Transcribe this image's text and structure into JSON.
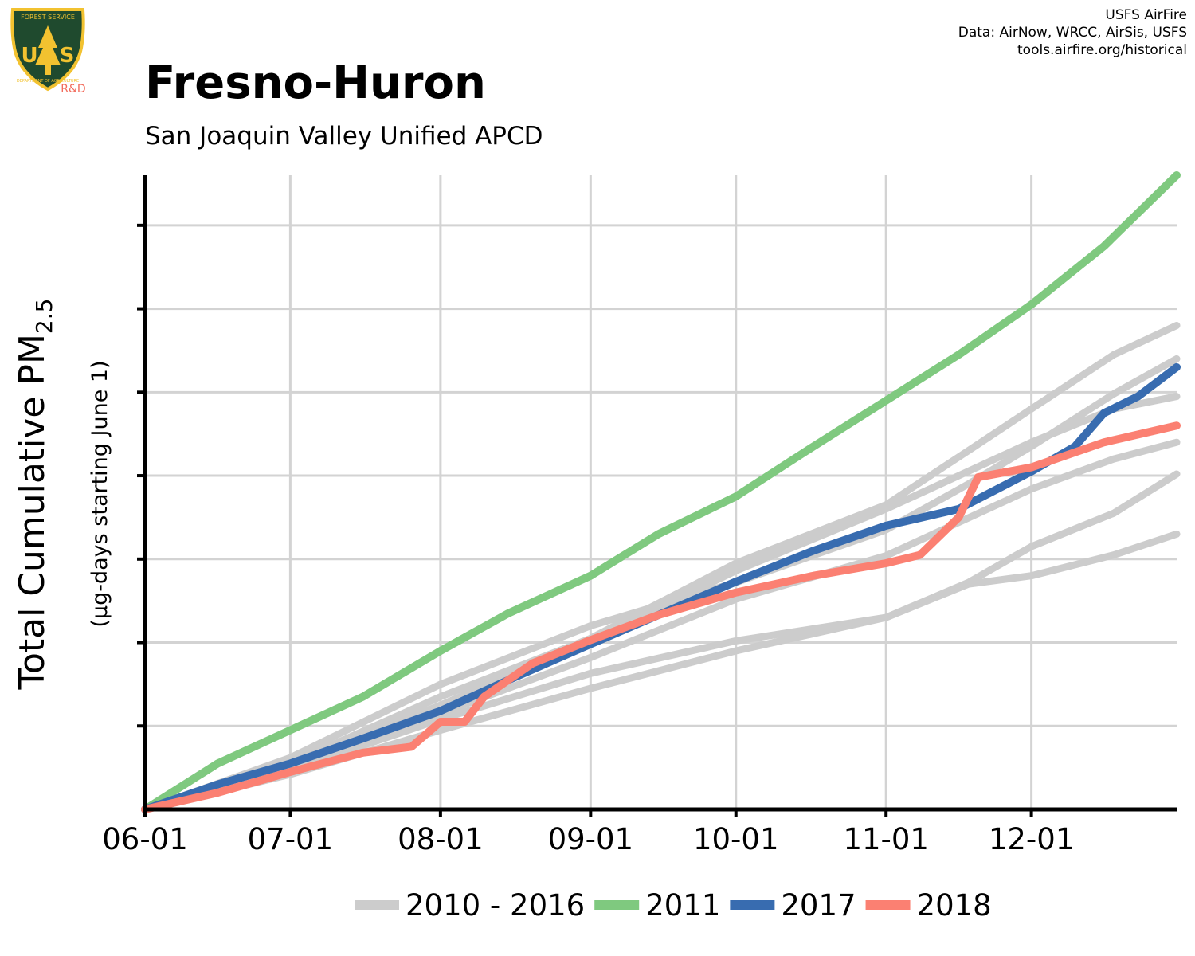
{
  "header": {
    "logo": {
      "top_text": "FOREST SERVICE",
      "initials": "U S",
      "bottom_text": "DEPARTMENT OF AGRICULTURE",
      "tag": "R&D"
    },
    "credits": [
      "USFS AirFire",
      "Data: AirNow, WRCC, AirSis, USFS",
      "tools.airfire.org/historical"
    ],
    "title": "Fresno-Huron",
    "subtitle": "San Joaquin Valley Unified APCD"
  },
  "colors": {
    "history": "#cccccc",
    "y2011": "#7fc97f",
    "y2017": "#386cb0",
    "y2018": "#fb8072",
    "grid": "#d3d3d3",
    "axis": "#000000",
    "logo_shield": "#1f4a2e",
    "logo_gold": "#f2c230",
    "logo_tag": "#f26b5b"
  },
  "chart_data": {
    "type": "line",
    "ylabel": "Total Cumulative PM",
    "ylabel_subscript": "2.5",
    "ylabel_sub": "(μg-days starting June 1)",
    "x_tick_labels": [
      "06-01",
      "07-01",
      "08-01",
      "09-01",
      "10-01",
      "11-01",
      "12-01"
    ],
    "x_tick_days": [
      0,
      30,
      61,
      92,
      122,
      153,
      183
    ],
    "xlim": [
      0,
      213
    ],
    "ylim": [
      0,
      7.6
    ],
    "y_ticks": [
      1,
      2,
      3,
      4,
      5,
      6,
      7
    ],
    "y_tick_labels_shown": false,
    "grid": true,
    "legend_position": "bottom",
    "series": [
      {
        "name": "2010 - 2016",
        "color_key": "history",
        "legend": true,
        "points": [
          [
            0,
            0
          ],
          [
            30,
            0.54
          ],
          [
            61,
            1.25
          ],
          [
            92,
            2.02
          ],
          [
            122,
            2.86
          ],
          [
            153,
            3.6
          ],
          [
            183,
            4.4
          ],
          [
            200,
            4.8
          ],
          [
            213,
            4.95
          ]
        ]
      },
      {
        "name": "",
        "color_key": "history",
        "legend": false,
        "points": [
          [
            0,
            0
          ],
          [
            30,
            0.5
          ],
          [
            61,
            1.15
          ],
          [
            92,
            1.82
          ],
          [
            122,
            2.52
          ],
          [
            153,
            3.04
          ],
          [
            183,
            3.84
          ],
          [
            200,
            4.2
          ],
          [
            213,
            4.4
          ]
        ]
      },
      {
        "name": "",
        "color_key": "history",
        "legend": false,
        "points": [
          [
            0,
            0
          ],
          [
            30,
            0.62
          ],
          [
            61,
            1.5
          ],
          [
            92,
            2.2
          ],
          [
            122,
            2.72
          ],
          [
            153,
            3.35
          ],
          [
            170,
            3.9
          ],
          [
            183,
            4.35
          ],
          [
            200,
            4.98
          ],
          [
            213,
            5.4
          ]
        ]
      },
      {
        "name": "",
        "color_key": "history",
        "legend": false,
        "points": [
          [
            0,
            0
          ],
          [
            30,
            0.47
          ],
          [
            61,
            1.08
          ],
          [
            92,
            1.63
          ],
          [
            122,
            2.02
          ],
          [
            153,
            2.3
          ],
          [
            170,
            2.7
          ],
          [
            183,
            2.8
          ],
          [
            200,
            3.05
          ],
          [
            213,
            3.3
          ]
        ]
      },
      {
        "name": "",
        "color_key": "history",
        "legend": false,
        "points": [
          [
            0,
            0
          ],
          [
            30,
            0.42
          ],
          [
            61,
            0.95
          ],
          [
            92,
            1.45
          ],
          [
            122,
            1.9
          ],
          [
            153,
            2.3
          ],
          [
            170,
            2.72
          ],
          [
            183,
            3.15
          ],
          [
            200,
            3.55
          ],
          [
            213,
            4.02
          ]
        ]
      },
      {
        "name": "",
        "color_key": "history",
        "legend": false,
        "points": [
          [
            0,
            0
          ],
          [
            30,
            0.55
          ],
          [
            61,
            1.35
          ],
          [
            92,
            2.05
          ],
          [
            122,
            2.95
          ],
          [
            153,
            3.65
          ],
          [
            170,
            4.3
          ],
          [
            183,
            4.8
          ],
          [
            200,
            5.45
          ],
          [
            213,
            5.8
          ]
        ]
      },
      {
        "name": "2011",
        "color_key": "y2011",
        "legend": true,
        "points": [
          [
            0,
            0
          ],
          [
            15,
            0.55
          ],
          [
            30,
            0.95
          ],
          [
            45,
            1.35
          ],
          [
            61,
            1.9
          ],
          [
            75,
            2.35
          ],
          [
            92,
            2.8
          ],
          [
            106,
            3.3
          ],
          [
            122,
            3.75
          ],
          [
            138,
            4.35
          ],
          [
            153,
            4.9
          ],
          [
            168,
            5.45
          ],
          [
            183,
            6.05
          ],
          [
            198,
            6.75
          ],
          [
            213,
            7.6
          ]
        ]
      },
      {
        "name": "2017",
        "color_key": "y2017",
        "legend": true,
        "points": [
          [
            0,
            0
          ],
          [
            15,
            0.3
          ],
          [
            30,
            0.55
          ],
          [
            45,
            0.85
          ],
          [
            61,
            1.18
          ],
          [
            75,
            1.55
          ],
          [
            92,
            1.98
          ],
          [
            106,
            2.33
          ],
          [
            122,
            2.73
          ],
          [
            138,
            3.1
          ],
          [
            153,
            3.4
          ],
          [
            168,
            3.6
          ],
          [
            178,
            3.9
          ],
          [
            183,
            4.05
          ],
          [
            192,
            4.35
          ],
          [
            198,
            4.75
          ],
          [
            205,
            4.95
          ],
          [
            213,
            5.3
          ]
        ]
      },
      {
        "name": "2018",
        "color_key": "y2018",
        "legend": true,
        "points": [
          [
            0,
            0
          ],
          [
            15,
            0.2
          ],
          [
            30,
            0.45
          ],
          [
            45,
            0.68
          ],
          [
            55,
            0.75
          ],
          [
            61,
            1.05
          ],
          [
            66,
            1.05
          ],
          [
            70,
            1.35
          ],
          [
            80,
            1.75
          ],
          [
            92,
            2.03
          ],
          [
            106,
            2.33
          ],
          [
            122,
            2.6
          ],
          [
            138,
            2.8
          ],
          [
            153,
            2.95
          ],
          [
            160,
            3.05
          ],
          [
            168,
            3.5
          ],
          [
            172,
            3.98
          ],
          [
            183,
            4.1
          ],
          [
            198,
            4.4
          ],
          [
            213,
            4.6
          ]
        ]
      }
    ]
  }
}
